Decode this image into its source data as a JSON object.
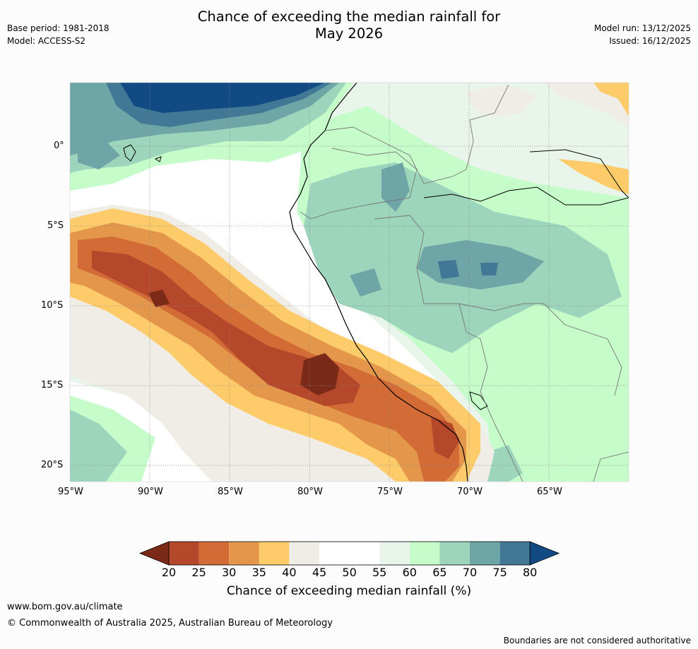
{
  "title": {
    "line1": "Chance of exceeding the median rainfall for",
    "line2": "May 2026"
  },
  "header_left": {
    "base_period": "Base period: 1981-2018",
    "model": "Model: ACCESS-S2"
  },
  "header_right": {
    "model_run": "Model run: 13/12/2025",
    "issued": "Issued: 16/12/2025"
  },
  "axes": {
    "lat_labels": [
      "0°",
      "5°S",
      "10°S",
      "15°S",
      "20°S"
    ],
    "lon_labels": [
      "95°W",
      "90°W",
      "85°W",
      "80°W",
      "75°W",
      "70°W",
      "65°W"
    ]
  },
  "colorbar": {
    "ticks": [
      "20",
      "25",
      "30",
      "35",
      "40",
      "45",
      "50",
      "55",
      "60",
      "65",
      "70",
      "75",
      "80"
    ],
    "label": "Chance of exceeding median rainfall (%)",
    "colors": [
      "#7a2a17",
      "#b5482a",
      "#d26b36",
      "#e4974a",
      "#fecb6b",
      "#f0ede6",
      "#ffffff",
      "#ffffff",
      "#e9f5ea",
      "#c6fbca",
      "#9cd4bc",
      "#6ea5a6",
      "#417896",
      "#124b84"
    ]
  },
  "footer": {
    "url": "www.bom.gov.au/climate",
    "copyright": "© Commonwealth of Australia 2025, Australian Bureau of Meteorology",
    "disclaimer": "Boundaries are not considered authoritative"
  }
}
